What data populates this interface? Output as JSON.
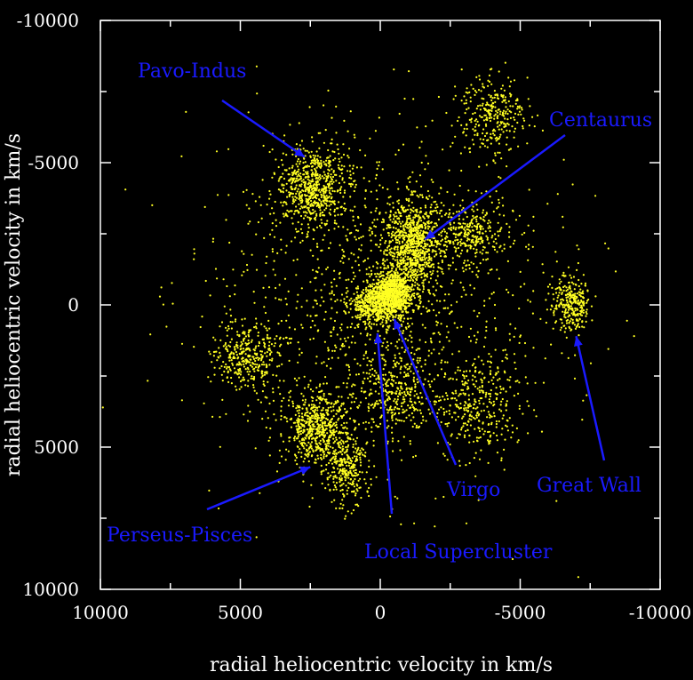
{
  "chart_data": {
    "type": "scatter",
    "title": "",
    "xlabel": "radial heliocentric velocity in km/s",
    "ylabel": "radial heliocentric velocity in km/s",
    "xlim": [
      10000,
      -10000
    ],
    "ylim": [
      -10000,
      10000
    ],
    "x_ticks": [
      10000,
      5000,
      0,
      -5000,
      -10000
    ],
    "y_ticks": [
      -10000,
      -5000,
      0,
      5000,
      10000
    ],
    "x_tick_labels": [
      "10000",
      "5000",
      "0",
      "-5000",
      "-10000"
    ],
    "y_tick_labels": [
      "-10000",
      "-5000",
      "0",
      "5000",
      "10000"
    ],
    "grid": false,
    "point_color": "#ffff22",
    "background_color": "#000000",
    "axis_color": "#ffffff",
    "annotation_color": "#1a1aff",
    "clusters": [
      {
        "center": [
          2400,
          -4200
        ],
        "spread": [
          1300,
          1400
        ],
        "count": 650
      },
      {
        "center": [
          -1200,
          -2200
        ],
        "spread": [
          1000,
          1500
        ],
        "count": 850
      },
      {
        "center": [
          -500,
          -500
        ],
        "spread": [
          700,
          700
        ],
        "count": 600
      },
      {
        "center": [
          0,
          0
        ],
        "spread": [
          1000,
          700
        ],
        "count": 650
      },
      {
        "center": [
          2300,
          4300
        ],
        "spread": [
          1100,
          1200
        ],
        "count": 550
      },
      {
        "center": [
          1200,
          5600
        ],
        "spread": [
          700,
          1400
        ],
        "count": 300
      },
      {
        "center": [
          -6800,
          0
        ],
        "spread": [
          700,
          900
        ],
        "count": 280
      },
      {
        "center": [
          4700,
          1800
        ],
        "spread": [
          1200,
          1100
        ],
        "count": 320
      },
      {
        "center": [
          -3200,
          -2500
        ],
        "spread": [
          1300,
          900
        ],
        "count": 260
      },
      {
        "center": [
          -4000,
          -6700
        ],
        "spread": [
          1200,
          1300
        ],
        "count": 300
      },
      {
        "center": [
          -500,
          3000
        ],
        "spread": [
          1500,
          1500
        ],
        "count": 320
      },
      {
        "center": [
          -3500,
          3500
        ],
        "spread": [
          1500,
          1600
        ],
        "count": 300
      },
      {
        "center": [
          0,
          0
        ],
        "spread": [
          6000,
          6000
        ],
        "count": 1300
      }
    ],
    "annotations": [
      {
        "label": "Pavo-Indus",
        "point": [
          2700,
          -5200
        ]
      },
      {
        "label": "Centaurus",
        "point": [
          -1600,
          -2300
        ]
      },
      {
        "label": "Virgo",
        "point": [
          -500,
          500
        ]
      },
      {
        "label": "Local Supercluster",
        "point": [
          100,
          1000
        ]
      },
      {
        "label": "Great Wall",
        "point": [
          -7000,
          1100
        ]
      },
      {
        "label": "Perseus-Pisces",
        "point": [
          2500,
          5700
        ]
      }
    ]
  }
}
